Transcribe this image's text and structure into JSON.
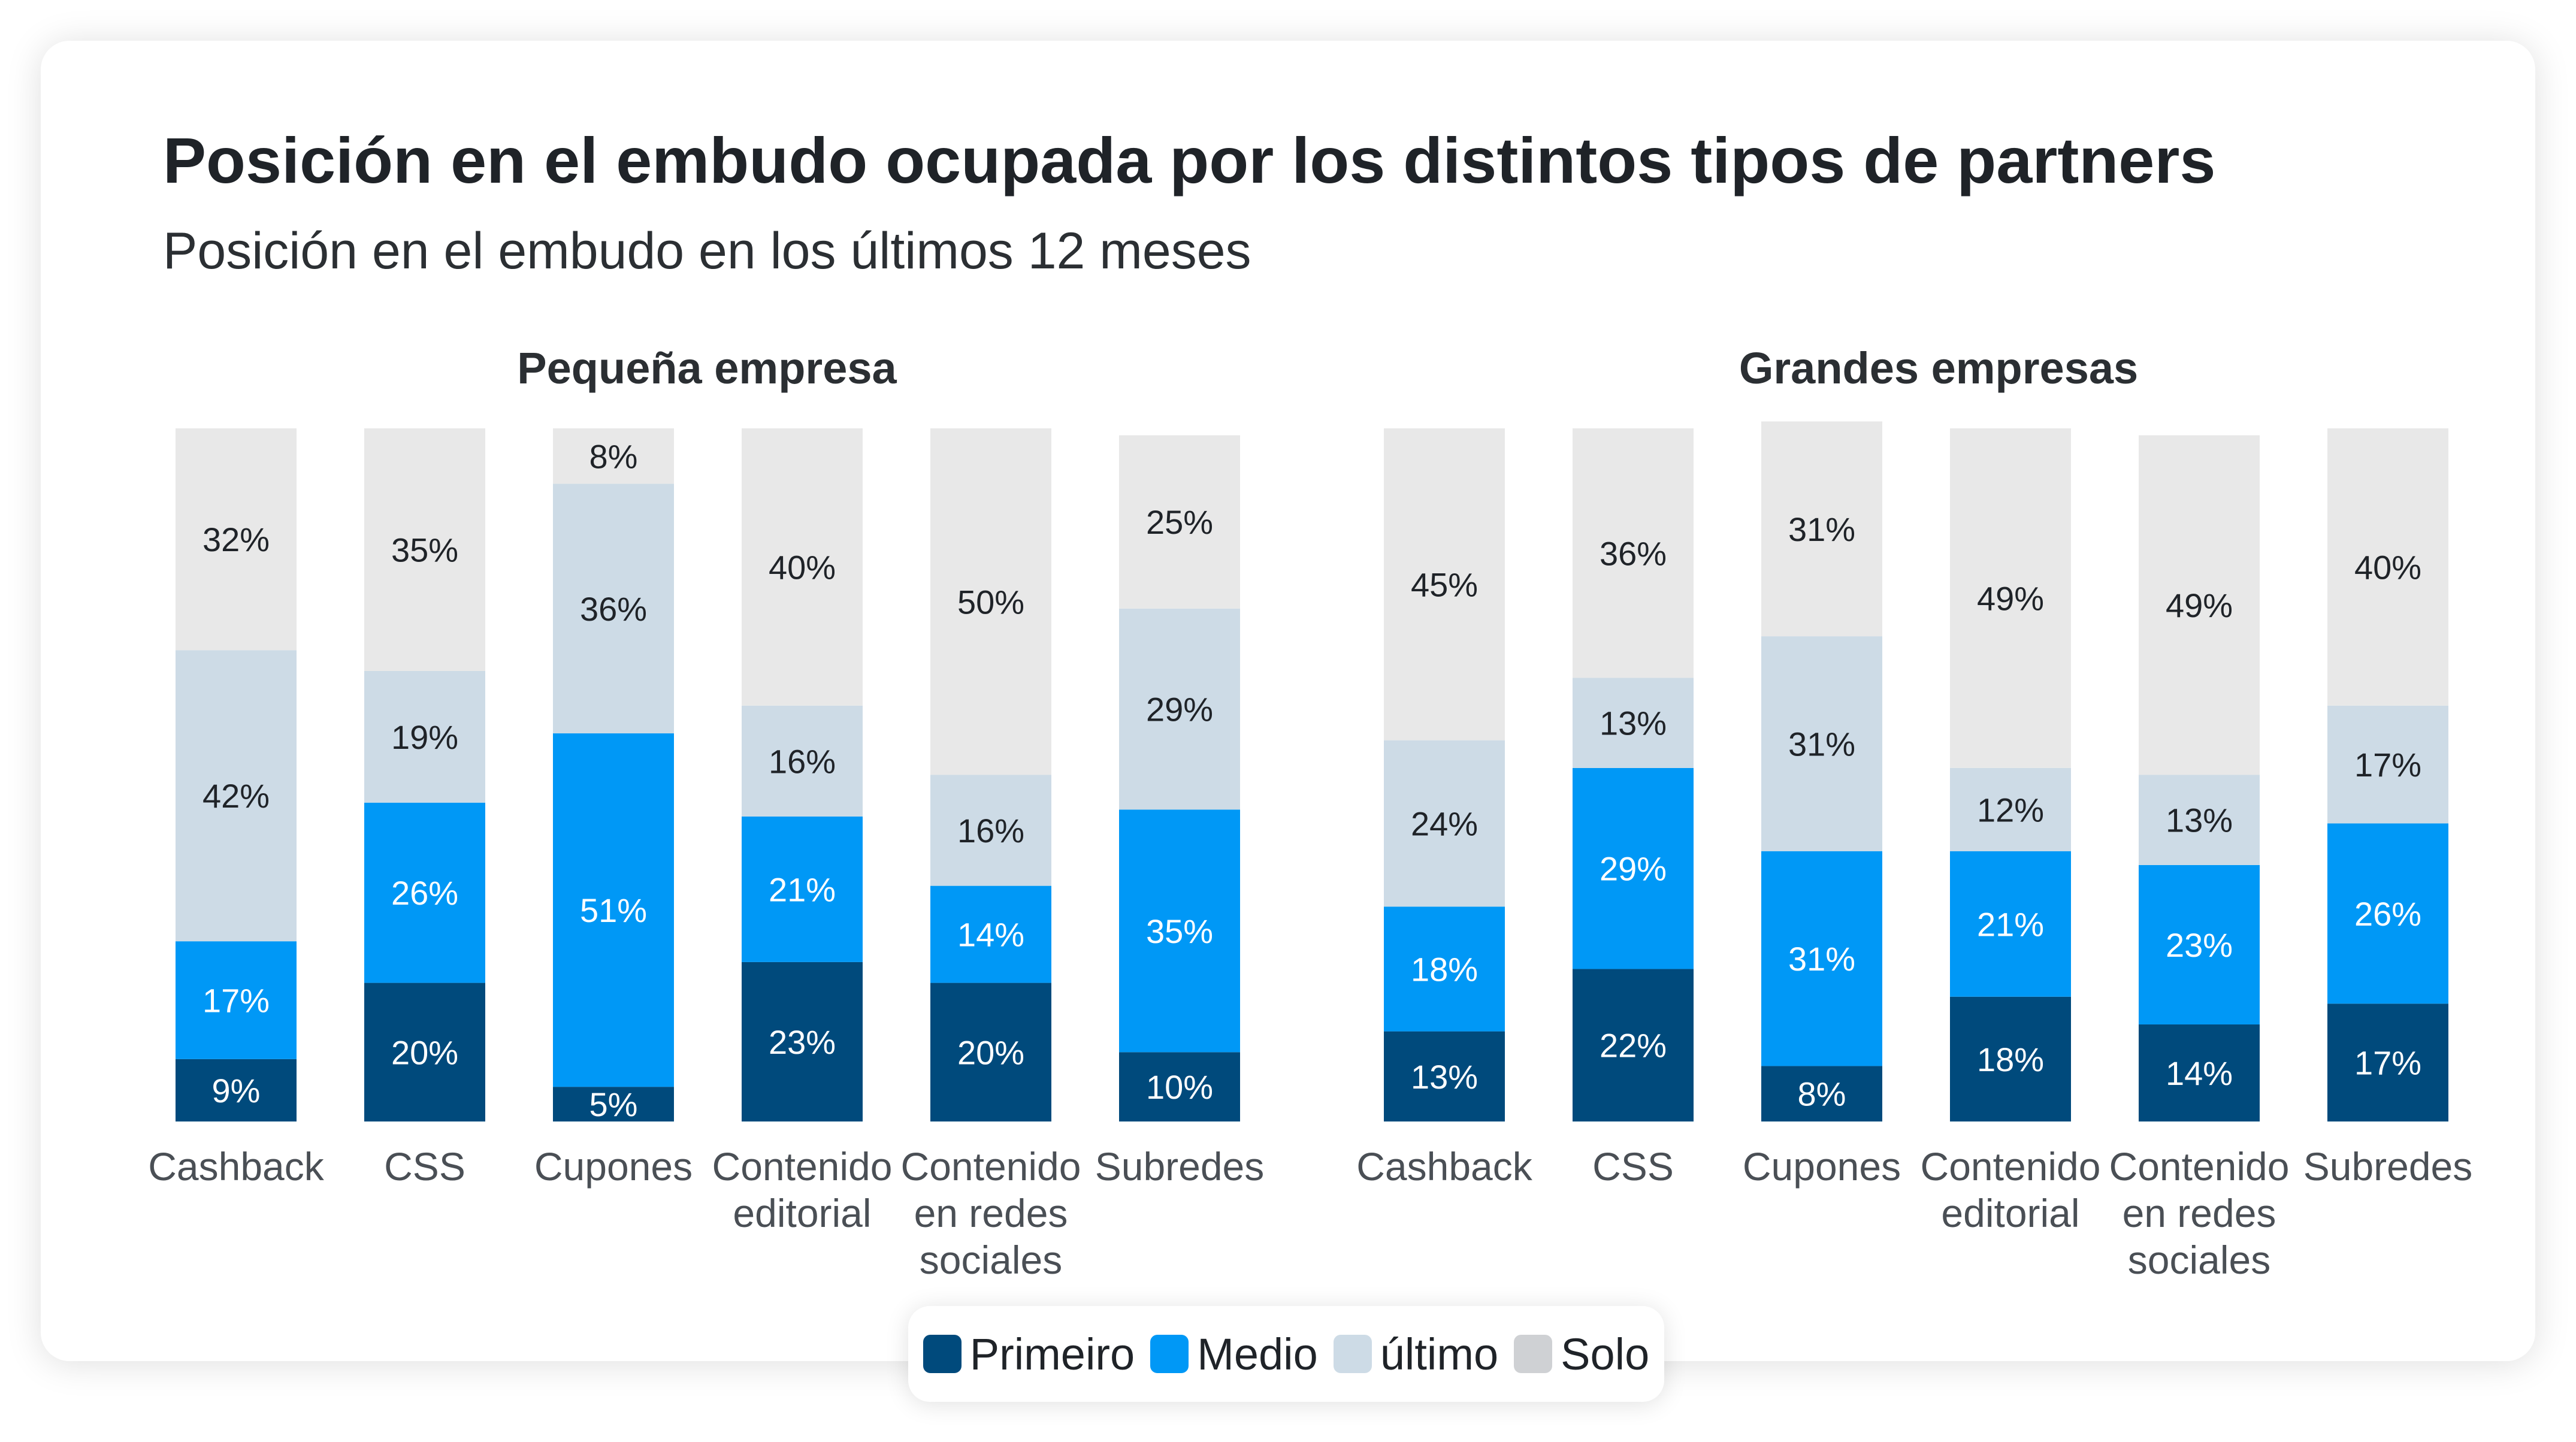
{
  "title": "Posición en el embudo ocupada por los distintos tipos de partners",
  "subtitle": "Posición en el embudo en los últimos 12 meses",
  "legend": [
    {
      "label": "Primeiro",
      "color": "#004a7c"
    },
    {
      "label": "Medio",
      "color": "#0098f6"
    },
    {
      "label": "último",
      "color": "#cddbe6"
    },
    {
      "label": "Solo",
      "color": "#cfd1d4"
    }
  ],
  "colors": {
    "Primeiro": "#004a7c",
    "Medio": "#0098f6",
    "último": "#cddbe6",
    "Solo": "#e8e8e8"
  },
  "chart_data": [
    {
      "type": "bar",
      "stacked": true,
      "title": "Pequeña empresa",
      "categories": [
        "Cashback",
        "CSS",
        "Cupones",
        "Contenido editorial",
        "Contenido en redes sociales",
        "Subredes"
      ],
      "series": [
        {
          "name": "Primeiro",
          "values": [
            9,
            20,
            5,
            23,
            20,
            10
          ]
        },
        {
          "name": "Medio",
          "values": [
            17,
            26,
            51,
            21,
            14,
            35
          ]
        },
        {
          "name": "último",
          "values": [
            42,
            19,
            36,
            16,
            16,
            29
          ]
        },
        {
          "name": "Solo",
          "values": [
            32,
            35,
            8,
            40,
            50,
            25
          ]
        }
      ]
    },
    {
      "type": "bar",
      "stacked": true,
      "title": "Grandes empresas",
      "categories": [
        "Cashback",
        "CSS",
        "Cupones",
        "Contenido editorial",
        "Contenido en redes sociales",
        "Subredes"
      ],
      "series": [
        {
          "name": "Primeiro",
          "values": [
            13,
            22,
            8,
            18,
            14,
            17
          ]
        },
        {
          "name": "Medio",
          "values": [
            18,
            29,
            31,
            21,
            23,
            26
          ]
        },
        {
          "name": "último",
          "values": [
            24,
            13,
            31,
            12,
            13,
            17
          ]
        },
        {
          "name": "Solo",
          "values": [
            45,
            36,
            31,
            49,
            49,
            40
          ]
        }
      ]
    }
  ]
}
